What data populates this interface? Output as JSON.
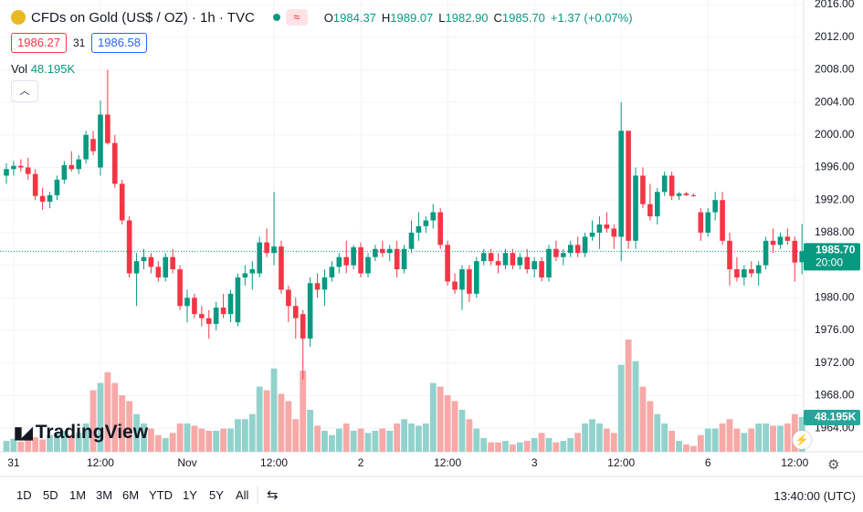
{
  "header": {
    "title": "CFDs on Gold (US$ / OZ) · 1h · TVC",
    "ohlc": [
      {
        "label": "O",
        "value": "1984.37"
      },
      {
        "label": "H",
        "value": "1989.07"
      },
      {
        "label": "L",
        "value": "1982.90"
      },
      {
        "label": "C",
        "value": "1985.70"
      }
    ],
    "change": "+1.37 (+0.07%)",
    "bid": "1986.27",
    "spread": "31",
    "ask": "1986.58",
    "vol_label": "Vol",
    "vol_value": "48.195K"
  },
  "logo": "TradingView",
  "chart_data": {
    "type": "candlestick",
    "up_color": "#089981",
    "down_color": "#f23645",
    "up_volume_color": "#92d2cc",
    "down_volume_color": "#f7a9a7",
    "ylim": [
      1961.1,
      2016.0
    ],
    "yticks": [
      {
        "value": 1964,
        "label": "1964.00"
      },
      {
        "value": 1968,
        "label": "1968.00"
      },
      {
        "value": 1972,
        "label": "1972.00"
      },
      {
        "value": 1976,
        "label": "1976.00"
      },
      {
        "value": 1980,
        "label": "1980.00"
      },
      {
        "value": 1984,
        "label": "1984.00"
      },
      {
        "value": 1988,
        "label": "1988.00"
      },
      {
        "value": 1992,
        "label": "1992.00"
      },
      {
        "value": 1996,
        "label": "1996.00"
      },
      {
        "value": 2000,
        "label": "2000.00"
      },
      {
        "value": 2004,
        "label": "2004.00"
      },
      {
        "value": 2008,
        "label": "2008.00"
      },
      {
        "value": 2012,
        "label": "2012.00"
      },
      {
        "value": 2016,
        "label": "2016.00"
      }
    ],
    "xticks": [
      {
        "value": 1,
        "label": "31"
      },
      {
        "value": 13,
        "label": "12:00"
      },
      {
        "value": 25,
        "label": "Nov"
      },
      {
        "value": 37,
        "label": "12:00"
      },
      {
        "value": 49,
        "label": "2"
      },
      {
        "value": 61,
        "label": "12:00"
      },
      {
        "value": 73,
        "label": "3"
      },
      {
        "value": 85,
        "label": "12:00"
      },
      {
        "value": 97,
        "label": "6"
      },
      {
        "value": 109,
        "label": "12:00"
      }
    ],
    "last_price": {
      "value": 1985.7,
      "label": "1985.70"
    },
    "countdown": "20:00",
    "last_volume_label": "48.195K",
    "candles": [
      {
        "open": 1995.0,
        "high": 1996.5,
        "low": 1994.0,
        "close": 1995.8,
        "volume": 15
      },
      {
        "open": 1995.8,
        "high": 1996.8,
        "low": 1995.0,
        "close": 1996.2,
        "volume": 18
      },
      {
        "open": 1996.2,
        "high": 1997.0,
        "low": 1995.5,
        "close": 1996.0,
        "volume": 14
      },
      {
        "open": 1996.0,
        "high": 1997.2,
        "low": 1994.5,
        "close": 1995.2,
        "volume": 17
      },
      {
        "open": 1995.2,
        "high": 1995.8,
        "low": 1992.0,
        "close": 1992.5,
        "volume": 20
      },
      {
        "open": 1992.5,
        "high": 1993.5,
        "low": 1990.8,
        "close": 1991.8,
        "volume": 17
      },
      {
        "open": 1991.8,
        "high": 1993.0,
        "low": 1991.0,
        "close": 1992.6,
        "volume": 23
      },
      {
        "open": 1992.6,
        "high": 1995.0,
        "low": 1992.0,
        "close": 1994.5,
        "volume": 26
      },
      {
        "open": 1994.5,
        "high": 1996.8,
        "low": 1994.0,
        "close": 1996.3,
        "volume": 29
      },
      {
        "open": 1996.3,
        "high": 1998.0,
        "low": 1995.5,
        "close": 1995.8,
        "volume": 23
      },
      {
        "open": 1995.8,
        "high": 1997.5,
        "low": 1995.2,
        "close": 1997.0,
        "volume": 26
      },
      {
        "open": 1997.0,
        "high": 2000.5,
        "low": 1996.5,
        "close": 2000.0,
        "volume": 39
      },
      {
        "open": 1999.5,
        "high": 2000.5,
        "low": 1997.5,
        "close": 1998.0,
        "volume": 85
      },
      {
        "open": 1996.0,
        "high": 2004.2,
        "low": 1995.0,
        "close": 2002.5,
        "volume": 95
      },
      {
        "open": 2002.5,
        "high": 2008.0,
        "low": 1998.8,
        "close": 1999.0,
        "volume": 110
      },
      {
        "open": 1999.0,
        "high": 2000.0,
        "low": 1993.5,
        "close": 1994.0,
        "volume": 95
      },
      {
        "open": 1994.0,
        "high": 1994.5,
        "low": 1989.0,
        "close": 1989.5,
        "volume": 78
      },
      {
        "open": 1989.5,
        "high": 1990.0,
        "low": 1982.5,
        "close": 1983.0,
        "volume": 70
      },
      {
        "open": 1983.0,
        "high": 1985.5,
        "low": 1979.0,
        "close": 1984.5,
        "volume": 52
      },
      {
        "open": 1984.5,
        "high": 1986.0,
        "low": 1983.5,
        "close": 1985.0,
        "volume": 39
      },
      {
        "open": 1985.0,
        "high": 1985.5,
        "low": 1983.0,
        "close": 1983.8,
        "volume": 32
      },
      {
        "open": 1983.8,
        "high": 1984.5,
        "low": 1982.0,
        "close": 1982.5,
        "volume": 23
      },
      {
        "open": 1982.5,
        "high": 1985.5,
        "low": 1982.0,
        "close": 1985.0,
        "volume": 19
      },
      {
        "open": 1985.0,
        "high": 1986.0,
        "low": 1983.0,
        "close": 1983.5,
        "volume": 26
      },
      {
        "open": 1983.5,
        "high": 1984.0,
        "low": 1978.5,
        "close": 1979.0,
        "volume": 39
      },
      {
        "open": 1979.0,
        "high": 1981.0,
        "low": 1977.0,
        "close": 1980.0,
        "volume": 39
      },
      {
        "open": 1980.0,
        "high": 1980.5,
        "low": 1977.5,
        "close": 1978.0,
        "volume": 36
      },
      {
        "open": 1978.0,
        "high": 1979.0,
        "low": 1976.5,
        "close": 1977.5,
        "volume": 32
      },
      {
        "open": 1977.5,
        "high": 1978.5,
        "low": 1975.0,
        "close": 1976.8,
        "volume": 29
      },
      {
        "open": 1976.8,
        "high": 1979.5,
        "low": 1976.0,
        "close": 1978.8,
        "volume": 29
      },
      {
        "open": 1978.8,
        "high": 1980.5,
        "low": 1977.5,
        "close": 1978.0,
        "volume": 32
      },
      {
        "open": 1978.0,
        "high": 1981.0,
        "low": 1977.0,
        "close": 1980.5,
        "volume": 32
      },
      {
        "open": 1977.0,
        "high": 1983.0,
        "low": 1976.5,
        "close": 1982.5,
        "volume": 45
      },
      {
        "open": 1982.5,
        "high": 1984.0,
        "low": 1981.5,
        "close": 1983.0,
        "volume": 45
      },
      {
        "open": 1983.0,
        "high": 1984.5,
        "low": 1981.0,
        "close": 1983.5,
        "volume": 52
      },
      {
        "open": 1983.0,
        "high": 1987.5,
        "low": 1982.5,
        "close": 1986.8,
        "volume": 90
      },
      {
        "open": 1986.8,
        "high": 1988.5,
        "low": 1985.0,
        "close": 1985.5,
        "volume": 85
      },
      {
        "open": 1985.5,
        "high": 1993.0,
        "low": 1984.0,
        "close": 1986.3,
        "volume": 115
      },
      {
        "open": 1986.3,
        "high": 1987.0,
        "low": 1980.5,
        "close": 1981.0,
        "volume": 80
      },
      {
        "open": 1981.0,
        "high": 1981.5,
        "low": 1977.0,
        "close": 1979.0,
        "volume": 70
      },
      {
        "open": 1979.0,
        "high": 1980.0,
        "low": 1975.0,
        "close": 1977.5,
        "volume": 45
      },
      {
        "open": 1978.0,
        "high": 1978.5,
        "low": 1970.0,
        "close": 1975.0,
        "volume": 112
      },
      {
        "open": 1975.0,
        "high": 1982.5,
        "low": 1974.0,
        "close": 1981.8,
        "volume": 58
      },
      {
        "open": 1981.8,
        "high": 1983.0,
        "low": 1980.0,
        "close": 1981.0,
        "volume": 36
      },
      {
        "open": 1981.0,
        "high": 1983.5,
        "low": 1979.0,
        "close": 1982.5,
        "volume": 29
      },
      {
        "open": 1982.5,
        "high": 1984.5,
        "low": 1982.0,
        "close": 1983.8,
        "volume": 23
      },
      {
        "open": 1983.8,
        "high": 1985.5,
        "low": 1983.0,
        "close": 1985.0,
        "volume": 32
      },
      {
        "open": 1985.0,
        "high": 1987.0,
        "low": 1983.0,
        "close": 1984.0,
        "volume": 39
      },
      {
        "open": 1984.0,
        "high": 1986.5,
        "low": 1983.5,
        "close": 1986.2,
        "volume": 29
      },
      {
        "open": 1986.2,
        "high": 1986.8,
        "low": 1982.5,
        "close": 1983.0,
        "volume": 32
      },
      {
        "open": 1983.0,
        "high": 1985.5,
        "low": 1982.5,
        "close": 1985.0,
        "volume": 26
      },
      {
        "open": 1985.0,
        "high": 1986.5,
        "low": 1984.5,
        "close": 1986.0,
        "volume": 29
      },
      {
        "open": 1986.0,
        "high": 1987.0,
        "low": 1985.0,
        "close": 1985.5,
        "volume": 32
      },
      {
        "open": 1985.5,
        "high": 1986.5,
        "low": 1984.5,
        "close": 1986.0,
        "volume": 29
      },
      {
        "open": 1986.0,
        "high": 1987.0,
        "low": 1982.5,
        "close": 1983.5,
        "volume": 39
      },
      {
        "open": 1983.5,
        "high": 1986.5,
        "low": 1983.0,
        "close": 1986.0,
        "volume": 45
      },
      {
        "open": 1986.0,
        "high": 1989.5,
        "low": 1985.5,
        "close": 1988.0,
        "volume": 39
      },
      {
        "open": 1988.0,
        "high": 1990.5,
        "low": 1987.0,
        "close": 1988.8,
        "volume": 36
      },
      {
        "open": 1988.8,
        "high": 1990.0,
        "low": 1988.0,
        "close": 1989.5,
        "volume": 39
      },
      {
        "open": 1989.5,
        "high": 1991.5,
        "low": 1988.5,
        "close": 1990.5,
        "volume": 95
      },
      {
        "open": 1990.5,
        "high": 1991.0,
        "low": 1986.0,
        "close": 1986.5,
        "volume": 90
      },
      {
        "open": 1986.5,
        "high": 1987.0,
        "low": 1981.5,
        "close": 1982.0,
        "volume": 78
      },
      {
        "open": 1982.0,
        "high": 1983.0,
        "low": 1980.5,
        "close": 1981.0,
        "volume": 70
      },
      {
        "open": 1981.0,
        "high": 1984.0,
        "low": 1978.5,
        "close": 1983.5,
        "volume": 58
      },
      {
        "open": 1983.5,
        "high": 1984.0,
        "low": 1979.5,
        "close": 1980.5,
        "volume": 45
      },
      {
        "open": 1980.5,
        "high": 1985.0,
        "low": 1980.0,
        "close": 1984.5,
        "volume": 32
      },
      {
        "open": 1984.5,
        "high": 1986.0,
        "low": 1984.0,
        "close": 1985.5,
        "volume": 19
      },
      {
        "open": 1985.5,
        "high": 1986.0,
        "low": 1984.0,
        "close": 1984.5,
        "volume": 13
      },
      {
        "open": 1984.5,
        "high": 1985.5,
        "low": 1983.0,
        "close": 1984.0,
        "volume": 13
      },
      {
        "open": 1984.0,
        "high": 1986.0,
        "low": 1983.5,
        "close": 1985.5,
        "volume": 15
      },
      {
        "open": 1985.5,
        "high": 1986.0,
        "low": 1983.5,
        "close": 1984.0,
        "volume": 10
      },
      {
        "open": 1984.0,
        "high": 1985.5,
        "low": 1983.5,
        "close": 1985.0,
        "volume": 13
      },
      {
        "open": 1985.0,
        "high": 1986.0,
        "low": 1983.0,
        "close": 1983.5,
        "volume": 15
      },
      {
        "open": 1983.5,
        "high": 1985.0,
        "low": 1982.5,
        "close": 1984.5,
        "volume": 19
      },
      {
        "open": 1984.5,
        "high": 1985.0,
        "low": 1982.0,
        "close": 1982.5,
        "volume": 26
      },
      {
        "open": 1982.5,
        "high": 1986.5,
        "low": 1982.0,
        "close": 1986.0,
        "volume": 19
      },
      {
        "open": 1986.0,
        "high": 1987.0,
        "low": 1984.5,
        "close": 1985.0,
        "volume": 13
      },
      {
        "open": 1985.0,
        "high": 1986.0,
        "low": 1984.0,
        "close": 1985.5,
        "volume": 15
      },
      {
        "open": 1985.5,
        "high": 1987.0,
        "low": 1985.0,
        "close": 1986.5,
        "volume": 19
      },
      {
        "open": 1986.5,
        "high": 1987.5,
        "low": 1985.0,
        "close": 1985.5,
        "volume": 26
      },
      {
        "open": 1985.5,
        "high": 1988.0,
        "low": 1985.0,
        "close": 1987.5,
        "volume": 39
      },
      {
        "open": 1987.5,
        "high": 1989.5,
        "low": 1987.0,
        "close": 1988.0,
        "volume": 45
      },
      {
        "open": 1988.0,
        "high": 1990.0,
        "low": 1986.0,
        "close": 1989.0,
        "volume": 39
      },
      {
        "open": 1989.0,
        "high": 1990.5,
        "low": 1988.0,
        "close": 1988.5,
        "volume": 32
      },
      {
        "open": 1988.5,
        "high": 1989.0,
        "low": 1986.0,
        "close": 1987.5,
        "volume": 26
      },
      {
        "open": 1987.5,
        "high": 2004.0,
        "low": 1984.5,
        "close": 2000.5,
        "volume": 120
      },
      {
        "open": 2000.5,
        "high": 2000.5,
        "low": 1986.0,
        "close": 1987.0,
        "volume": 155
      },
      {
        "open": 1987.0,
        "high": 1996.0,
        "low": 1986.0,
        "close": 1995.0,
        "volume": 125
      },
      {
        "open": 1995.0,
        "high": 1996.0,
        "low": 1991.0,
        "close": 1991.5,
        "volume": 90
      },
      {
        "open": 1991.5,
        "high": 1994.0,
        "low": 1989.5,
        "close": 1990.0,
        "volume": 70
      },
      {
        "open": 1990.0,
        "high": 1993.5,
        "low": 1989.0,
        "close": 1993.0,
        "volume": 52
      },
      {
        "open": 1993.0,
        "high": 1995.5,
        "low": 1992.5,
        "close": 1995.0,
        "volume": 39
      },
      {
        "open": 1995.0,
        "high": 1995.5,
        "low": 1992.0,
        "close": 1992.5,
        "volume": 29
      },
      {
        "open": 1992.5,
        "high": 1993.0,
        "low": 1992.0,
        "close": 1992.8,
        "volume": 15
      },
      {
        "open": 1992.8,
        "high": 1993.0,
        "low": 1992.5,
        "close": 1992.6,
        "volume": 10
      },
      {
        "open": 1992.6,
        "high": 1992.8,
        "low": 1992.4,
        "close": 1992.5,
        "volume": 8
      },
      {
        "open": 1990.5,
        "high": 1991.0,
        "low": 1987.0,
        "close": 1988.0,
        "volume": 23
      },
      {
        "open": 1988.0,
        "high": 1991.0,
        "low": 1987.5,
        "close": 1990.5,
        "volume": 32
      },
      {
        "open": 1990.5,
        "high": 1993.0,
        "low": 1989.5,
        "close": 1992.0,
        "volume": 32
      },
      {
        "open": 1992.0,
        "high": 1993.0,
        "low": 1986.5,
        "close": 1987.0,
        "volume": 39
      },
      {
        "open": 1987.0,
        "high": 1988.0,
        "low": 1981.5,
        "close": 1983.5,
        "volume": 45
      },
      {
        "open": 1983.5,
        "high": 1985.0,
        "low": 1982.0,
        "close": 1982.5,
        "volume": 32
      },
      {
        "open": 1982.5,
        "high": 1984.0,
        "low": 1981.5,
        "close": 1983.5,
        "volume": 26
      },
      {
        "open": 1983.5,
        "high": 1984.5,
        "low": 1982.5,
        "close": 1983.0,
        "volume": 32
      },
      {
        "open": 1983.0,
        "high": 1984.5,
        "low": 1981.5,
        "close": 1984.0,
        "volume": 39
      },
      {
        "open": 1984.0,
        "high": 1987.5,
        "low": 1983.5,
        "close": 1987.0,
        "volume": 39
      },
      {
        "open": 1987.0,
        "high": 1988.5,
        "low": 1985.5,
        "close": 1986.5,
        "volume": 36
      },
      {
        "open": 1986.5,
        "high": 1988.0,
        "low": 1986.0,
        "close": 1987.5,
        "volume": 36
      },
      {
        "open": 1987.5,
        "high": 1988.5,
        "low": 1986.5,
        "close": 1987.0,
        "volume": 39
      },
      {
        "open": 1987.0,
        "high": 1987.5,
        "low": 1982.0,
        "close": 1984.33,
        "volume": 52
      },
      {
        "open": 1984.37,
        "high": 1989.07,
        "low": 1982.9,
        "close": 1985.7,
        "volume": 48.195
      }
    ]
  },
  "toolbar": {
    "ranges": [
      "1D",
      "5D",
      "1M",
      "3M",
      "6M",
      "YTD",
      "1Y",
      "5Y",
      "All"
    ],
    "clock": "13:40:00 (UTC)"
  }
}
